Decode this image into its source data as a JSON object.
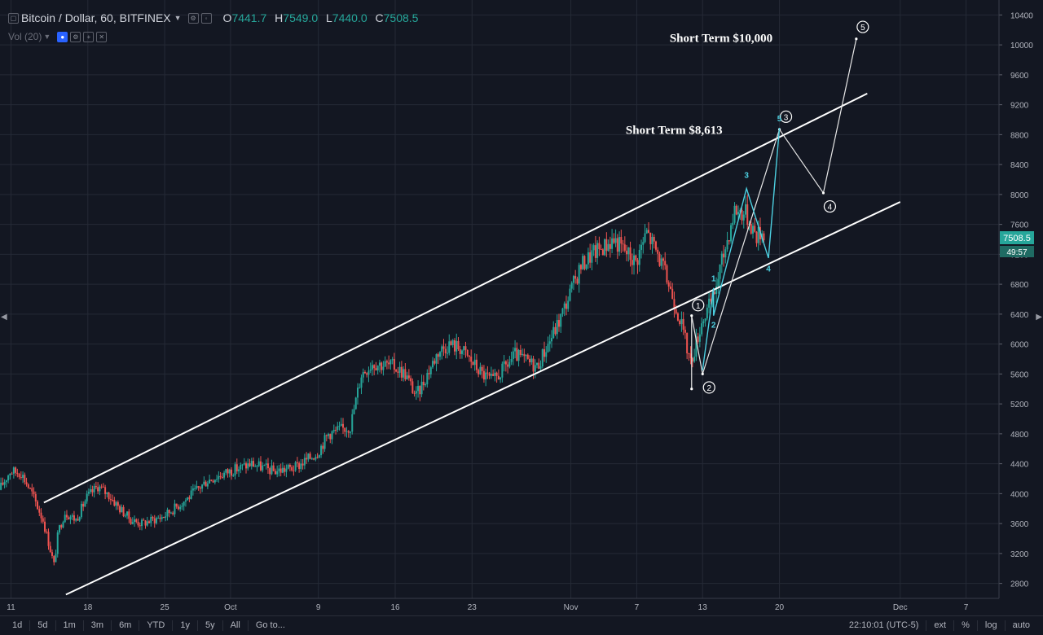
{
  "header": {
    "symbol": "Bitcoin / Dollar, 60, BITFINEX",
    "ohlc": {
      "o_label": "O",
      "o": "7441.7",
      "h_label": "H",
      "h": "7549.0",
      "l_label": "L",
      "l": "7440.0",
      "c_label": "C",
      "c": "7508.5"
    },
    "volume_label": "Vol (20)"
  },
  "colors": {
    "background": "#131722",
    "grid": "#252a36",
    "up": "#26a69a",
    "down": "#ef5350",
    "channel": "#ffffff",
    "wave": "#4dd0e1",
    "price_tag": "#26a69a"
  },
  "price_badge": {
    "price": "7508.5",
    "countdown": "49:57"
  },
  "toolbar": {
    "timeframes": [
      "1d",
      "5d",
      "1m",
      "3m",
      "6m",
      "YTD",
      "1y",
      "5y",
      "All",
      "Go to..."
    ],
    "clock": "22:10:01 (UTC-5)",
    "right_items": [
      "ext",
      "%",
      "log",
      "auto"
    ]
  },
  "chart_data": {
    "type": "candlestick",
    "symbol": "BTCUSD",
    "exchange": "BITFINEX",
    "interval_minutes": 60,
    "y_axis": {
      "range": [
        2600,
        10600
      ],
      "ticks": [
        2800,
        3200,
        3600,
        4000,
        4400,
        4800,
        5200,
        5600,
        6000,
        6400,
        6800,
        7200,
        7600,
        8000,
        8400,
        8800,
        9200,
        9600,
        10000,
        10400
      ]
    },
    "x_axis": {
      "range": [
        "2017-09-10",
        "2017-12-10"
      ],
      "tick_labels": [
        {
          "date": "2017-09-11",
          "label": "11"
        },
        {
          "date": "2017-09-18",
          "label": "18"
        },
        {
          "date": "2017-09-25",
          "label": "25"
        },
        {
          "date": "2017-10-01",
          "label": "Oct"
        },
        {
          "date": "2017-10-09",
          "label": "9"
        },
        {
          "date": "2017-10-16",
          "label": "16"
        },
        {
          "date": "2017-10-23",
          "label": "23"
        },
        {
          "date": "2017-11-01",
          "label": "Nov"
        },
        {
          "date": "2017-11-07",
          "label": "7"
        },
        {
          "date": "2017-11-13",
          "label": "13"
        },
        {
          "date": "2017-11-20",
          "label": "20"
        },
        {
          "date": "2017-12-01",
          "label": "Dec"
        },
        {
          "date": "2017-12-07",
          "label": "7"
        }
      ]
    },
    "price_path": [
      [
        "2017-09-10",
        4050
      ],
      [
        "2017-09-11",
        4300
      ],
      [
        "2017-09-12",
        4280
      ],
      [
        "2017-09-13",
        4000
      ],
      [
        "2017-09-14",
        3650
      ],
      [
        "2017-09-15",
        3050
      ],
      [
        "2017-09-15",
        3500
      ],
      [
        "2017-09-16",
        3750
      ],
      [
        "2017-09-17",
        3650
      ],
      [
        "2017-09-18",
        3950
      ],
      [
        "2017-09-19",
        4100
      ],
      [
        "2017-09-20",
        3980
      ],
      [
        "2017-09-21",
        3800
      ],
      [
        "2017-09-22",
        3650
      ],
      [
        "2017-09-23",
        3600
      ],
      [
        "2017-09-25",
        3700
      ],
      [
        "2017-09-27",
        3920
      ],
      [
        "2017-09-29",
        4180
      ],
      [
        "2017-10-01",
        4300
      ],
      [
        "2017-10-03",
        4400
      ],
      [
        "2017-10-05",
        4300
      ],
      [
        "2017-10-07",
        4350
      ],
      [
        "2017-10-09",
        4550
      ],
      [
        "2017-10-10",
        4800
      ],
      [
        "2017-10-12",
        4900
      ],
      [
        "2017-10-13",
        5600
      ],
      [
        "2017-10-14",
        5750
      ],
      [
        "2017-10-16",
        5700
      ],
      [
        "2017-10-17",
        5600
      ],
      [
        "2017-10-18",
        5300
      ],
      [
        "2017-10-19",
        5600
      ],
      [
        "2017-10-20",
        5900
      ],
      [
        "2017-10-21",
        6000
      ],
      [
        "2017-10-22",
        5950
      ],
      [
        "2017-10-24",
        5600
      ],
      [
        "2017-10-25",
        5500
      ],
      [
        "2017-10-27",
        5850
      ],
      [
        "2017-10-29",
        5700
      ],
      [
        "2017-10-31",
        6300
      ],
      [
        "2017-11-02",
        7050
      ],
      [
        "2017-11-03",
        7200
      ],
      [
        "2017-11-05",
        7400
      ],
      [
        "2017-11-07",
        7100
      ],
      [
        "2017-11-08",
        7500
      ],
      [
        "2017-11-09",
        7200
      ],
      [
        "2017-11-10",
        6800
      ],
      [
        "2017-11-11",
        6350
      ],
      [
        "2017-11-12",
        5750
      ],
      [
        "2017-11-13",
        6300
      ],
      [
        "2017-11-14",
        6600
      ],
      [
        "2017-11-15",
        7200
      ],
      [
        "2017-11-16",
        7800
      ],
      [
        "2017-11-17",
        7750
      ],
      [
        "2017-11-18",
        7450
      ],
      [
        "2017-11-18",
        7500
      ]
    ],
    "channel_lines": [
      {
        "name": "upper",
        "from": [
          "2017-09-14",
          3880
        ],
        "to": [
          "2017-11-28",
          9350
        ]
      },
      {
        "name": "lower",
        "from": [
          "2017-09-16",
          2650
        ],
        "to": [
          "2017-12-01",
          7900
        ]
      }
    ],
    "projection_wave": {
      "points": [
        {
          "date": "2017-11-12",
          "price": 5400
        },
        {
          "date": "2017-11-12",
          "price": 6380
        },
        {
          "date": "2017-11-13",
          "price": 5600
        },
        {
          "date": "2017-11-20",
          "price": 8870
        },
        {
          "date": "2017-11-24",
          "price": 8020
        },
        {
          "date": "2017-11-27",
          "price": 10080
        }
      ],
      "labels": [
        {
          "text": "1",
          "date": "2017-11-12",
          "price": 6520
        },
        {
          "text": "2",
          "date": "2017-11-13",
          "price": 5420
        },
        {
          "text": "3",
          "date": "2017-11-20",
          "price": 9040
        },
        {
          "text": "4",
          "date": "2017-11-24",
          "price": 7840
        },
        {
          "text": "5",
          "date": "2017-11-27",
          "price": 10240
        }
      ]
    },
    "sub_wave": {
      "points": [
        {
          "date": "2017-11-13",
          "price": 5650
        },
        {
          "date": "2017-11-14",
          "price": 6750
        },
        {
          "date": "2017-11-14",
          "price": 6380
        },
        {
          "date": "2017-11-17",
          "price": 8080
        },
        {
          "date": "2017-11-19",
          "price": 7150
        },
        {
          "date": "2017-11-20",
          "price": 8890
        }
      ],
      "labels": [
        {
          "text": "1",
          "date": "2017-11-14",
          "price": 6840
        },
        {
          "text": "2",
          "date": "2017-11-14",
          "price": 6220
        },
        {
          "text": "3",
          "date": "2017-11-17",
          "price": 8220
        },
        {
          "text": "4",
          "date": "2017-11-19",
          "price": 6970
        },
        {
          "text": "5",
          "date": "2017-11-20",
          "price": 8980
        }
      ]
    },
    "annotations": [
      {
        "text": "Short Term $10,000",
        "date": "2017-11-10",
        "price": 10040
      },
      {
        "text": "Short Term $8,613",
        "date": "2017-11-06",
        "price": 8810
      }
    ],
    "grid": true,
    "legend": "none"
  }
}
